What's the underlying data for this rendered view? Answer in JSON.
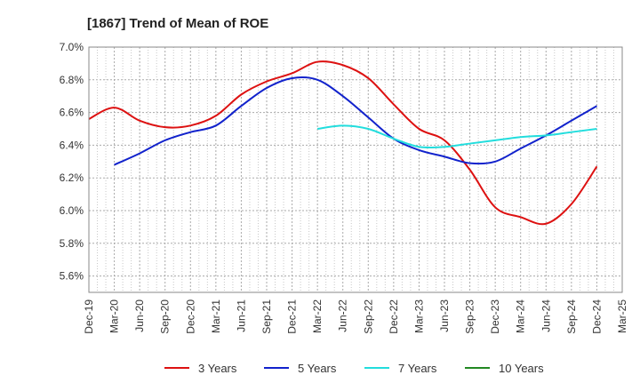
{
  "chart_data": {
    "type": "line",
    "title": "[1867]  Trend of Mean of ROE",
    "xlabel": "",
    "ylabel": "",
    "x": [
      "Dec-19",
      "Mar-20",
      "Jun-20",
      "Sep-20",
      "Dec-20",
      "Mar-21",
      "Jun-21",
      "Sep-21",
      "Dec-21",
      "Mar-22",
      "Jun-22",
      "Sep-22",
      "Dec-22",
      "Mar-23",
      "Jun-23",
      "Sep-23",
      "Dec-23",
      "Mar-24",
      "Jun-24",
      "Sep-24",
      "Dec-24",
      "Mar-25"
    ],
    "ylim": [
      5.5,
      7.0
    ],
    "yticks": [
      "5.6%",
      "5.8%",
      "6.0%",
      "6.2%",
      "6.4%",
      "6.6%",
      "6.8%",
      "7.0%"
    ],
    "grid": true,
    "legend_position": "bottom",
    "series": [
      {
        "name": "3 Years",
        "color": "#dd1111",
        "values": [
          6.56,
          6.63,
          6.55,
          6.51,
          6.52,
          6.58,
          6.71,
          6.79,
          6.84,
          6.91,
          6.89,
          6.81,
          6.65,
          6.5,
          6.43,
          6.25,
          6.02,
          5.96,
          5.92,
          6.04,
          6.27,
          null
        ]
      },
      {
        "name": "5 Years",
        "color": "#1122cc",
        "values": [
          null,
          6.28,
          6.35,
          6.43,
          6.48,
          6.52,
          6.64,
          6.75,
          6.81,
          6.8,
          6.7,
          6.57,
          6.44,
          6.37,
          6.33,
          6.29,
          6.3,
          6.38,
          6.46,
          6.55,
          6.64,
          null
        ]
      },
      {
        "name": "7 Years",
        "color": "#22dddd",
        "values": [
          null,
          null,
          null,
          null,
          null,
          null,
          null,
          null,
          null,
          6.5,
          6.52,
          6.5,
          6.44,
          6.39,
          6.39,
          6.41,
          6.43,
          6.45,
          6.46,
          6.48,
          6.5,
          null
        ]
      },
      {
        "name": "10 Years",
        "color": "#228822",
        "values": [
          null,
          null,
          null,
          null,
          null,
          null,
          null,
          null,
          null,
          null,
          null,
          null,
          null,
          null,
          null,
          null,
          null,
          null,
          null,
          null,
          null,
          null
        ]
      }
    ]
  }
}
